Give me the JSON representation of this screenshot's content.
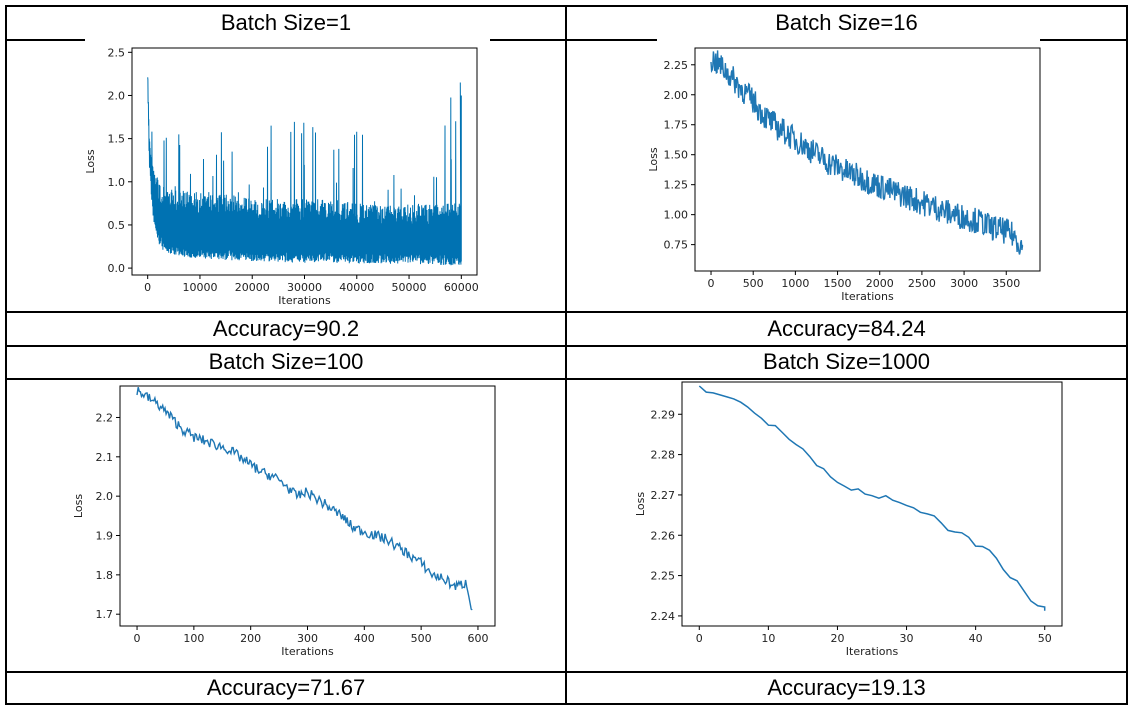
{
  "table": {
    "cells": [
      {
        "title": "Batch Size=1",
        "accuracy": "Accuracy=90.2"
      },
      {
        "title": "Batch Size=16",
        "accuracy": "Accuracy=84.24"
      },
      {
        "title": "Batch Size=100",
        "accuracy": "Accuracy=71.67"
      },
      {
        "title": "Batch Size=1000",
        "accuracy": "Accuracy=19.13"
      }
    ]
  },
  "colors": {
    "line": "#1f77b4",
    "dense": "#0072b2",
    "frame": "#000000"
  },
  "chart_data": [
    {
      "type": "line",
      "xlabel": "Iterations",
      "ylabel": "Loss",
      "xlim": [
        -3000,
        63000
      ],
      "ylim": [
        -0.08,
        2.55
      ],
      "xticks": [
        0,
        10000,
        20000,
        30000,
        40000,
        50000,
        60000
      ],
      "yticks": [
        0.0,
        0.5,
        1.0,
        1.5,
        2.0,
        2.5
      ],
      "ytick_labels": [
        "0.0",
        "0.5",
        "1.0",
        "1.5",
        "2.0",
        "2.5"
      ],
      "series": [
        {
          "x": [
            0,
            300,
            700,
            1200,
            2000,
            3000,
            5000,
            8000,
            12000,
            16000,
            20000,
            25000,
            30000,
            35000,
            40000,
            45000,
            50000,
            55000,
            59000,
            59500,
            60000
          ],
          "upper": [
            2.45,
            2.1,
            1.9,
            1.6,
            1.5,
            1.5,
            1.55,
            1.6,
            1.55,
            1.6,
            1.6,
            1.7,
            1.7,
            1.6,
            1.65,
            1.6,
            1.6,
            1.7,
            2.15,
            1.5,
            2.0
          ],
          "lower": [
            2.1,
            1.2,
            0.8,
            0.5,
            0.3,
            0.2,
            0.15,
            0.12,
            0.1,
            0.09,
            0.08,
            0.07,
            0.06,
            0.06,
            0.05,
            0.05,
            0.05,
            0.04,
            0.03,
            0.03,
            0.04
          ],
          "typ_high": [
            2.3,
            1.6,
            1.3,
            1.15,
            1.05,
            0.95,
            0.9,
            0.9,
            0.85,
            0.85,
            0.8,
            0.8,
            0.8,
            0.8,
            0.75,
            0.75,
            0.75,
            0.75,
            0.75,
            0.75,
            0.8
          ]
        }
      ]
    },
    {
      "type": "line",
      "xlabel": "Iterations",
      "ylabel": "Loss",
      "xlim": [
        -190,
        3900
      ],
      "ylim": [
        0.53,
        2.39
      ],
      "xticks": [
        0,
        500,
        1000,
        1500,
        2000,
        2500,
        3000,
        3500
      ],
      "yticks": [
        0.75,
        1.0,
        1.25,
        1.5,
        1.75,
        2.0,
        2.25
      ],
      "ytick_labels": [
        "0.75",
        "1.00",
        "1.25",
        "1.50",
        "1.75",
        "2.00",
        "2.25"
      ],
      "series": [
        {
          "x": [
            0,
            100,
            200,
            300,
            400,
            500,
            600,
            700,
            800,
            900,
            1000,
            1100,
            1200,
            1300,
            1400,
            1500,
            1600,
            1700,
            1800,
            1900,
            2000,
            2100,
            2200,
            2300,
            2400,
            2500,
            2600,
            2700,
            2800,
            2900,
            3000,
            3100,
            3200,
            3300,
            3400,
            3500,
            3600,
            3700
          ],
          "y": [
            2.3,
            2.25,
            2.18,
            2.1,
            2.02,
            1.95,
            1.85,
            1.78,
            1.72,
            1.68,
            1.62,
            1.58,
            1.53,
            1.48,
            1.43,
            1.4,
            1.36,
            1.33,
            1.3,
            1.27,
            1.24,
            1.21,
            1.18,
            1.16,
            1.13,
            1.1,
            1.08,
            1.05,
            1.02,
            1.0,
            0.98,
            0.96,
            0.94,
            0.9,
            0.88,
            0.86,
            0.82,
            0.72
          ],
          "noise": 0.11
        }
      ]
    },
    {
      "type": "line",
      "xlabel": "Iterations",
      "ylabel": "Loss",
      "xlim": [
        -30,
        630
      ],
      "ylim": [
        1.67,
        2.28
      ],
      "xticks": [
        0,
        100,
        200,
        300,
        400,
        500,
        600
      ],
      "yticks": [
        1.7,
        1.8,
        1.9,
        2.0,
        2.1,
        2.2
      ],
      "ytick_labels": [
        "1.7",
        "1.8",
        "1.9",
        "2.0",
        "2.1",
        "2.2"
      ],
      "series": [
        {
          "x": [
            0,
            20,
            40,
            60,
            80,
            100,
            120,
            140,
            160,
            180,
            200,
            220,
            240,
            260,
            280,
            300,
            320,
            340,
            360,
            380,
            400,
            420,
            440,
            460,
            480,
            500,
            520,
            540,
            560,
            580,
            590
          ],
          "y": [
            2.27,
            2.25,
            2.23,
            2.2,
            2.17,
            2.15,
            2.14,
            2.13,
            2.12,
            2.1,
            2.08,
            2.06,
            2.05,
            2.03,
            2.0,
            2.01,
            1.99,
            1.97,
            1.95,
            1.92,
            1.91,
            1.9,
            1.89,
            1.87,
            1.85,
            1.83,
            1.8,
            1.79,
            1.77,
            1.78,
            1.71
          ],
          "noise": 0.013
        }
      ]
    },
    {
      "type": "line",
      "xlabel": "Iterations",
      "ylabel": "Loss",
      "xlim": [
        -2.5,
        52.5
      ],
      "ylim": [
        2.2375,
        2.298
      ],
      "xticks": [
        0,
        10,
        20,
        30,
        40,
        50
      ],
      "yticks": [
        2.24,
        2.25,
        2.26,
        2.27,
        2.28,
        2.29
      ],
      "ytick_labels": [
        "2.24",
        "2.25",
        "2.26",
        "2.27",
        "2.28",
        "2.29"
      ],
      "series": [
        {
          "x": [
            0,
            1,
            2,
            3,
            4,
            5,
            6,
            7,
            8,
            9,
            10,
            11,
            12,
            13,
            14,
            15,
            16,
            17,
            18,
            19,
            20,
            21,
            22,
            23,
            24,
            25,
            26,
            27,
            28,
            29,
            30,
            31,
            32,
            33,
            34,
            35,
            36,
            37,
            38,
            39,
            40,
            41,
            42,
            43,
            44,
            45,
            46,
            47,
            48,
            49,
            50
          ],
          "y": [
            2.297,
            2.2955,
            2.2953,
            2.2948,
            2.2943,
            2.2938,
            2.293,
            2.2918,
            2.2903,
            2.289,
            2.2873,
            2.2872,
            2.2855,
            2.2838,
            2.2825,
            2.2814,
            2.2795,
            2.2773,
            2.2765,
            2.2745,
            2.2731,
            2.2722,
            2.2712,
            2.2715,
            2.2702,
            2.2698,
            2.2692,
            2.2698,
            2.2687,
            2.2681,
            2.2674,
            2.2668,
            2.2657,
            2.2653,
            2.2648,
            2.2631,
            2.2612,
            2.2608,
            2.2606,
            2.2595,
            2.2573,
            2.2572,
            2.2563,
            2.2543,
            2.2515,
            2.2495,
            2.2487,
            2.2462,
            2.2437,
            2.2425,
            2.2422
          ],
          "tail": [
            [
              48,
              2.2425
            ],
            [
              49,
              2.2422
            ],
            [
              50,
              2.2413
            ]
          ]
        }
      ]
    }
  ]
}
